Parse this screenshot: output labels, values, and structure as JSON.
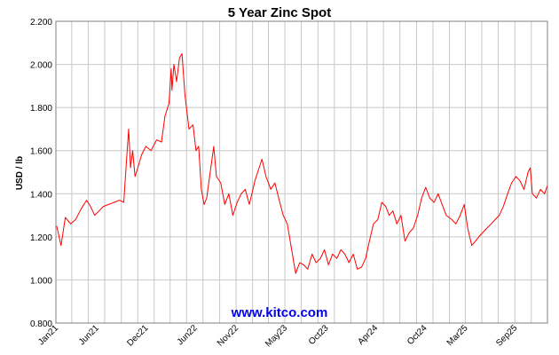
{
  "chart_data": {
    "type": "line",
    "title": "5 Year Zinc Spot",
    "ylabel": "USD / lb",
    "xlabel": "",
    "ylim": [
      0.8,
      2.2
    ],
    "yticks": [
      "0.800",
      "1.000",
      "1.200",
      "1.400",
      "1.600",
      "1.800",
      "2.000",
      "2.200"
    ],
    "xlim": [
      "2021-01-01",
      "2025-12-31"
    ],
    "xticks": [
      {
        "date": "2021-01-01",
        "label": "Jan21"
      },
      {
        "date": "2021-06-01",
        "label": "Jun21"
      },
      {
        "date": "2021-12-01",
        "label": "Dec21"
      },
      {
        "date": "2022-06-01",
        "label": "Jun22"
      },
      {
        "date": "2022-11-01",
        "label": "Nov22"
      },
      {
        "date": "2023-05-01",
        "label": "May23"
      },
      {
        "date": "2023-10-01",
        "label": "Oct23"
      },
      {
        "date": "2024-04-01",
        "label": "Apr24"
      },
      {
        "date": "2024-10-01",
        "label": "Oct24"
      },
      {
        "date": "2025-03-01",
        "label": "Mar25"
      },
      {
        "date": "2025-09-01",
        "label": "Sep25"
      }
    ],
    "grid": true,
    "series": [
      {
        "color": "#ff0000",
        "x": [
          "2021-01-04",
          "2021-01-20",
          "2021-02-05",
          "2021-02-25",
          "2021-03-15",
          "2021-04-05",
          "2021-04-25",
          "2021-05-10",
          "2021-05-25",
          "2021-06-10",
          "2021-06-25",
          "2021-07-15",
          "2021-08-05",
          "2021-08-25",
          "2021-09-10",
          "2021-09-20",
          "2021-09-28",
          "2021-10-05",
          "2021-10-13",
          "2021-10-22",
          "2021-11-01",
          "2021-11-15",
          "2021-12-01",
          "2021-12-20",
          "2022-01-10",
          "2022-01-28",
          "2022-02-10",
          "2022-02-25",
          "2022-03-05",
          "2022-03-08",
          "2022-03-15",
          "2022-03-25",
          "2022-04-05",
          "2022-04-14",
          "2022-04-25",
          "2022-05-10",
          "2022-05-25",
          "2022-06-05",
          "2022-06-15",
          "2022-06-25",
          "2022-07-05",
          "2022-07-15",
          "2022-07-28",
          "2022-08-10",
          "2022-08-20",
          "2022-09-05",
          "2022-09-20",
          "2022-10-05",
          "2022-10-20",
          "2022-11-05",
          "2022-11-20",
          "2022-12-05",
          "2022-12-20",
          "2023-01-10",
          "2023-01-20",
          "2023-02-05",
          "2023-02-20",
          "2023-03-10",
          "2023-03-25",
          "2023-04-10",
          "2023-04-25",
          "2023-05-10",
          "2023-05-25",
          "2023-06-10",
          "2023-06-25",
          "2023-07-10",
          "2023-07-25",
          "2023-08-10",
          "2023-08-25",
          "2023-09-10",
          "2023-09-25",
          "2023-10-10",
          "2023-10-25",
          "2023-11-10",
          "2023-11-25",
          "2023-12-10",
          "2023-12-25",
          "2024-01-10",
          "2024-01-25",
          "2024-02-10",
          "2024-02-25",
          "2024-03-10",
          "2024-03-25",
          "2024-04-10",
          "2024-04-25",
          "2024-05-10",
          "2024-05-22",
          "2024-06-05",
          "2024-06-20",
          "2024-07-05",
          "2024-07-20",
          "2024-08-05",
          "2024-08-20",
          "2024-09-05",
          "2024-09-20",
          "2024-10-05",
          "2024-10-20",
          "2024-11-05",
          "2024-11-20",
          "2024-12-05",
          "2024-12-20",
          "2025-01-10",
          "2025-01-25",
          "2025-02-10",
          "2025-02-25",
          "2025-03-10",
          "2025-03-25",
          "2025-04-08",
          "2025-04-20",
          "2025-05-05",
          "2025-05-20",
          "2025-06-05",
          "2025-06-20",
          "2025-07-05",
          "2025-07-20",
          "2025-08-05",
          "2025-08-20",
          "2025-09-05",
          "2025-09-20",
          "2025-10-05",
          "2025-10-20",
          "2025-10-28",
          "2025-11-05",
          "2025-11-20",
          "2025-12-05",
          "2025-12-20",
          "2025-12-31"
        ],
        "y": [
          1.25,
          1.16,
          1.29,
          1.26,
          1.28,
          1.33,
          1.37,
          1.34,
          1.3,
          1.32,
          1.34,
          1.35,
          1.36,
          1.37,
          1.36,
          1.55,
          1.7,
          1.52,
          1.6,
          1.48,
          1.52,
          1.58,
          1.62,
          1.6,
          1.65,
          1.64,
          1.76,
          1.82,
          1.98,
          1.88,
          2.0,
          1.92,
          2.03,
          2.05,
          1.86,
          1.7,
          1.72,
          1.6,
          1.62,
          1.42,
          1.35,
          1.38,
          1.5,
          1.62,
          1.48,
          1.45,
          1.35,
          1.4,
          1.3,
          1.36,
          1.4,
          1.42,
          1.35,
          1.46,
          1.5,
          1.56,
          1.48,
          1.42,
          1.45,
          1.37,
          1.3,
          1.26,
          1.15,
          1.03,
          1.08,
          1.07,
          1.05,
          1.12,
          1.08,
          1.1,
          1.14,
          1.07,
          1.12,
          1.1,
          1.14,
          1.12,
          1.08,
          1.12,
          1.05,
          1.06,
          1.1,
          1.18,
          1.26,
          1.28,
          1.36,
          1.34,
          1.3,
          1.32,
          1.26,
          1.3,
          1.18,
          1.22,
          1.24,
          1.3,
          1.38,
          1.43,
          1.38,
          1.36,
          1.4,
          1.35,
          1.3,
          1.28,
          1.26,
          1.3,
          1.35,
          1.24,
          1.16,
          1.18,
          1.2,
          1.22,
          1.24,
          1.26,
          1.28,
          1.3,
          1.34,
          1.4,
          1.45,
          1.48,
          1.46,
          1.42,
          1.5,
          1.52,
          1.4,
          1.38,
          1.42,
          1.4,
          1.44
        ]
      }
    ]
  },
  "watermark": "www.kitco.com"
}
